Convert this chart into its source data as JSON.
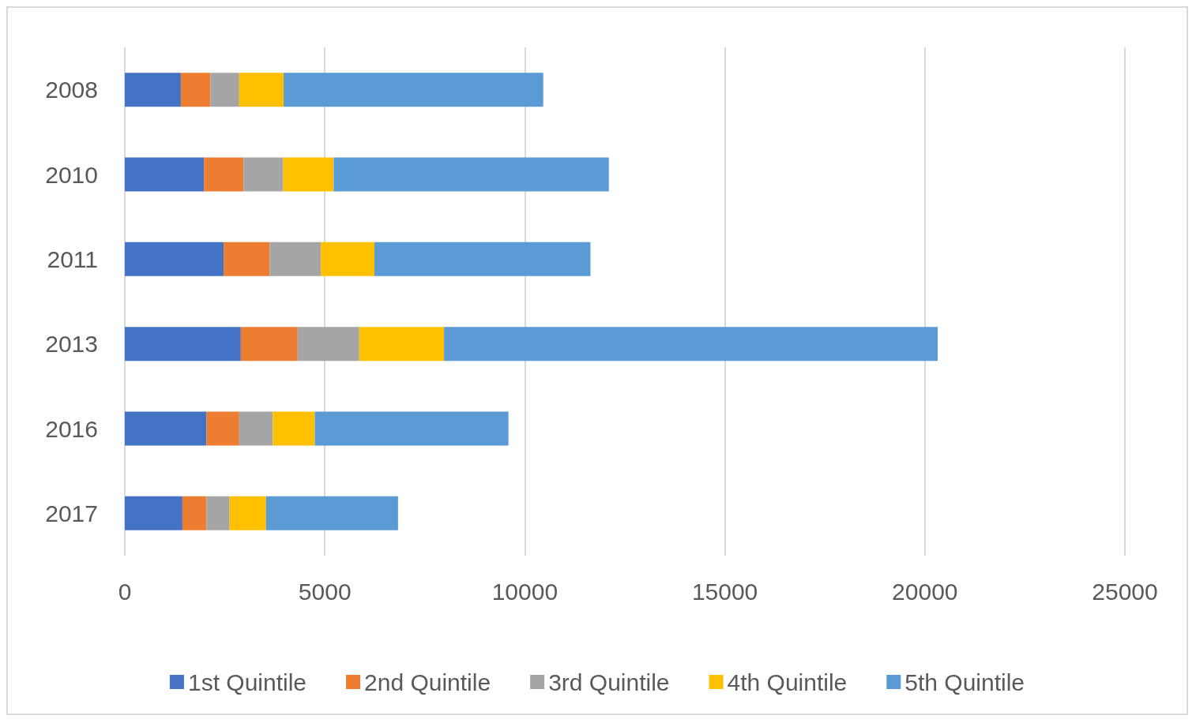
{
  "chart_data": {
    "type": "bar",
    "orientation": "horizontal",
    "stacked": true,
    "categories": [
      "2008",
      "2010",
      "2011",
      "2013",
      "2016",
      "2017"
    ],
    "series": [
      {
        "name": "1st Quintile",
        "color": "#4472c4",
        "values": [
          1400,
          1980,
          2470,
          2900,
          2040,
          1440
        ]
      },
      {
        "name": "2nd Quintile",
        "color": "#ed7d31",
        "values": [
          740,
          990,
          1150,
          1420,
          820,
          600
        ]
      },
      {
        "name": "3rd Quintile",
        "color": "#a5a5a5",
        "values": [
          720,
          990,
          1280,
          1540,
          840,
          580
        ]
      },
      {
        "name": "4th Quintile",
        "color": "#ffc000",
        "values": [
          1110,
          1260,
          1340,
          2120,
          1050,
          910
        ]
      },
      {
        "name": "5th Quintile",
        "color": "#5b9bd5",
        "values": [
          6490,
          6880,
          5400,
          12340,
          4840,
          3300
        ]
      }
    ],
    "xlim": [
      0,
      25000
    ],
    "xticks": [
      0,
      5000,
      10000,
      15000,
      20000,
      25000
    ],
    "grid": "x",
    "legend": "bottom"
  }
}
